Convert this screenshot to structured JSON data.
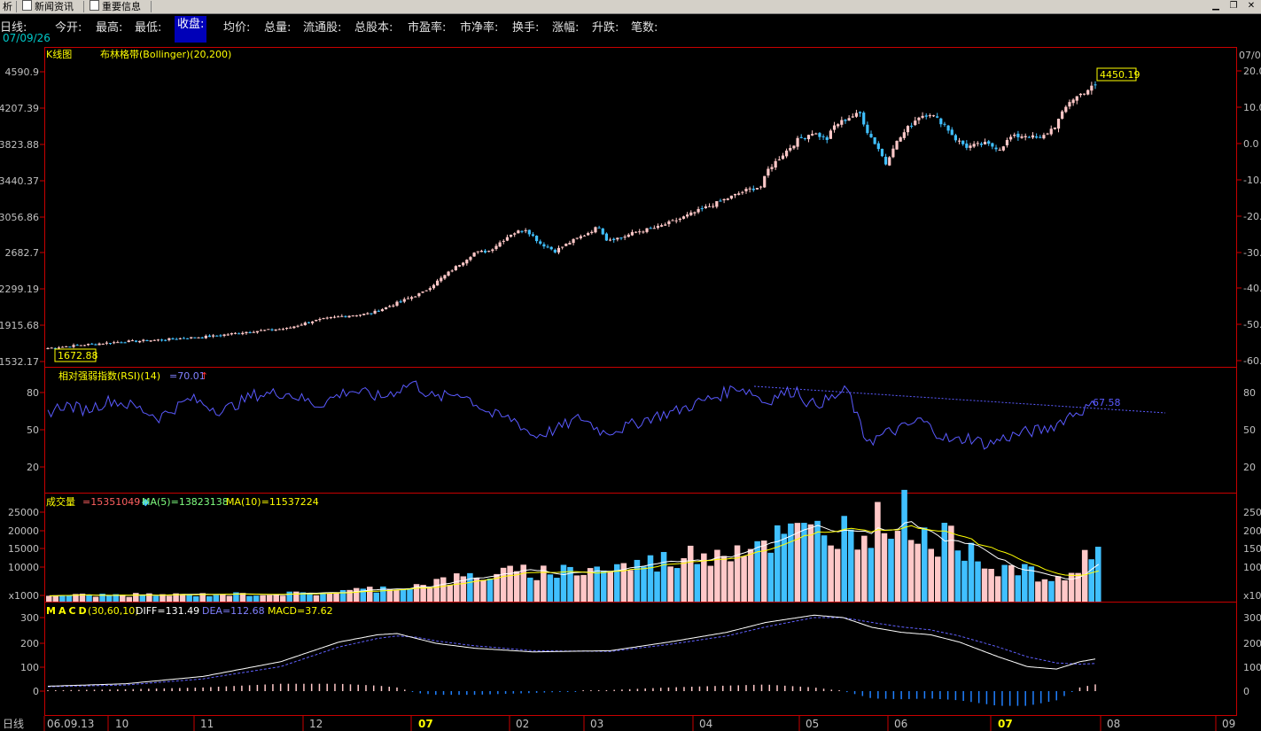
{
  "tabs": [
    {
      "label": "析"
    },
    {
      "label": "新闻资讯"
    },
    {
      "label": "重要信息"
    }
  ],
  "quote": {
    "period": "日线:",
    "date": "07/09/26",
    "fields": [
      "今开:",
      "最高:",
      "最低:",
      "收盘:",
      "均价:",
      "总量:",
      "流通股:",
      "总股本:",
      "市盈率:",
      "市净率:",
      "换手:",
      "涨幅:",
      "升跌:",
      "笔数:"
    ],
    "selected": "收盘:"
  },
  "colors": {
    "up": "#ffc8c8",
    "down": "#40c0ff",
    "axis": "#c80000",
    "text": "#ffff00"
  },
  "kline": {
    "title": "K线图",
    "indicator": "布林格带(Bollinger)(20,200)",
    "yticks": [
      "4590.9",
      "4207.39",
      "3823.88",
      "3440.37",
      "3056.86",
      "2682.7",
      "2299.19",
      "1915.68",
      "1532.17"
    ],
    "rticks": [
      "20.0",
      "10.0",
      "0.0",
      "-10.0",
      "-20.0",
      "-30.0",
      "-40.0",
      "-50.0",
      "-60.0"
    ],
    "rtop": "07/0",
    "high_label": "4450.19",
    "low_label": "1672.88"
  },
  "rsi": {
    "title": "相对强弱指数(RSI)(14)",
    "value": "=70.01",
    "yticks": [
      "80",
      "50",
      "20"
    ],
    "trend_label": "67.58"
  },
  "volume": {
    "title": "成交量",
    "value": "=15351049",
    "ma5": "MA(5)=13823138",
    "ma10": "MA(10)=11537224",
    "yticks": [
      "25000",
      "20000",
      "15000",
      "10000",
      "x1000"
    ]
  },
  "macd": {
    "title": "MACD",
    "params": "(30,60,10)",
    "diff": "DIFF=131.49",
    "dea": "DEA=112.68",
    "macd": "MACD=37.62",
    "yticks": [
      "300",
      "200",
      "100",
      "0"
    ]
  },
  "xaxis": {
    "period": "日线",
    "labels": [
      "06.09.13",
      "10",
      "11",
      "12",
      "07",
      "02",
      "03",
      "04",
      "05",
      "06",
      "07",
      "08",
      "09"
    ]
  },
  "chart_data": [
    {
      "type": "line",
      "title": "K线图",
      "ylabel": "",
      "ylim": [
        1532.17,
        4590.9
      ],
      "x": [
        "06.09",
        "10",
        "11",
        "12",
        "07",
        "02",
        "03",
        "04",
        "05",
        "06",
        "07",
        "08"
      ],
      "series": [
        {
          "name": "收盘",
          "values": [
            1673,
            1760,
            1880,
            2070,
            2680,
            2720,
            2960,
            3220,
            3760,
            4020,
            3780,
            4450
          ]
        }
      ]
    },
    {
      "type": "line",
      "title": "相对强弱指数(RSI)(14)",
      "ylim": [
        0,
        100
      ],
      "x": [
        "06.09",
        "10",
        "11",
        "12",
        "07",
        "02",
        "03",
        "04",
        "05",
        "06",
        "07",
        "08"
      ],
      "series": [
        {
          "name": "RSI",
          "values": [
            64,
            72,
            68,
            80,
            82,
            52,
            58,
            72,
            78,
            45,
            44,
            70.01
          ]
        }
      ]
    },
    {
      "type": "bar",
      "title": "成交量",
      "ylabel": "x1000",
      "ylim": [
        0,
        28000
      ],
      "x": [
        "06.09",
        "10",
        "11",
        "12",
        "07",
        "02",
        "03",
        "04",
        "05",
        "06",
        "07",
        "08"
      ],
      "series": [
        {
          "name": "成交量",
          "values": [
            1700,
            1900,
            2200,
            4500,
            8000,
            8500,
            9000,
            12500,
            21000,
            19500,
            9000,
            15351
          ]
        }
      ]
    },
    {
      "type": "line",
      "title": "MACD",
      "ylim": [
        -100,
        340
      ],
      "x": [
        "06.09",
        "10",
        "11",
        "12",
        "07",
        "02",
        "03",
        "04",
        "05",
        "06",
        "07",
        "08"
      ],
      "series": [
        {
          "name": "DIFF",
          "values": [
            20,
            40,
            70,
            140,
            230,
            190,
            165,
            185,
            270,
            250,
            130,
            131.49
          ]
        },
        {
          "name": "DEA",
          "values": [
            18,
            35,
            62,
            125,
            215,
            200,
            172,
            180,
            255,
            265,
            160,
            112.68
          ]
        }
      ]
    }
  ]
}
